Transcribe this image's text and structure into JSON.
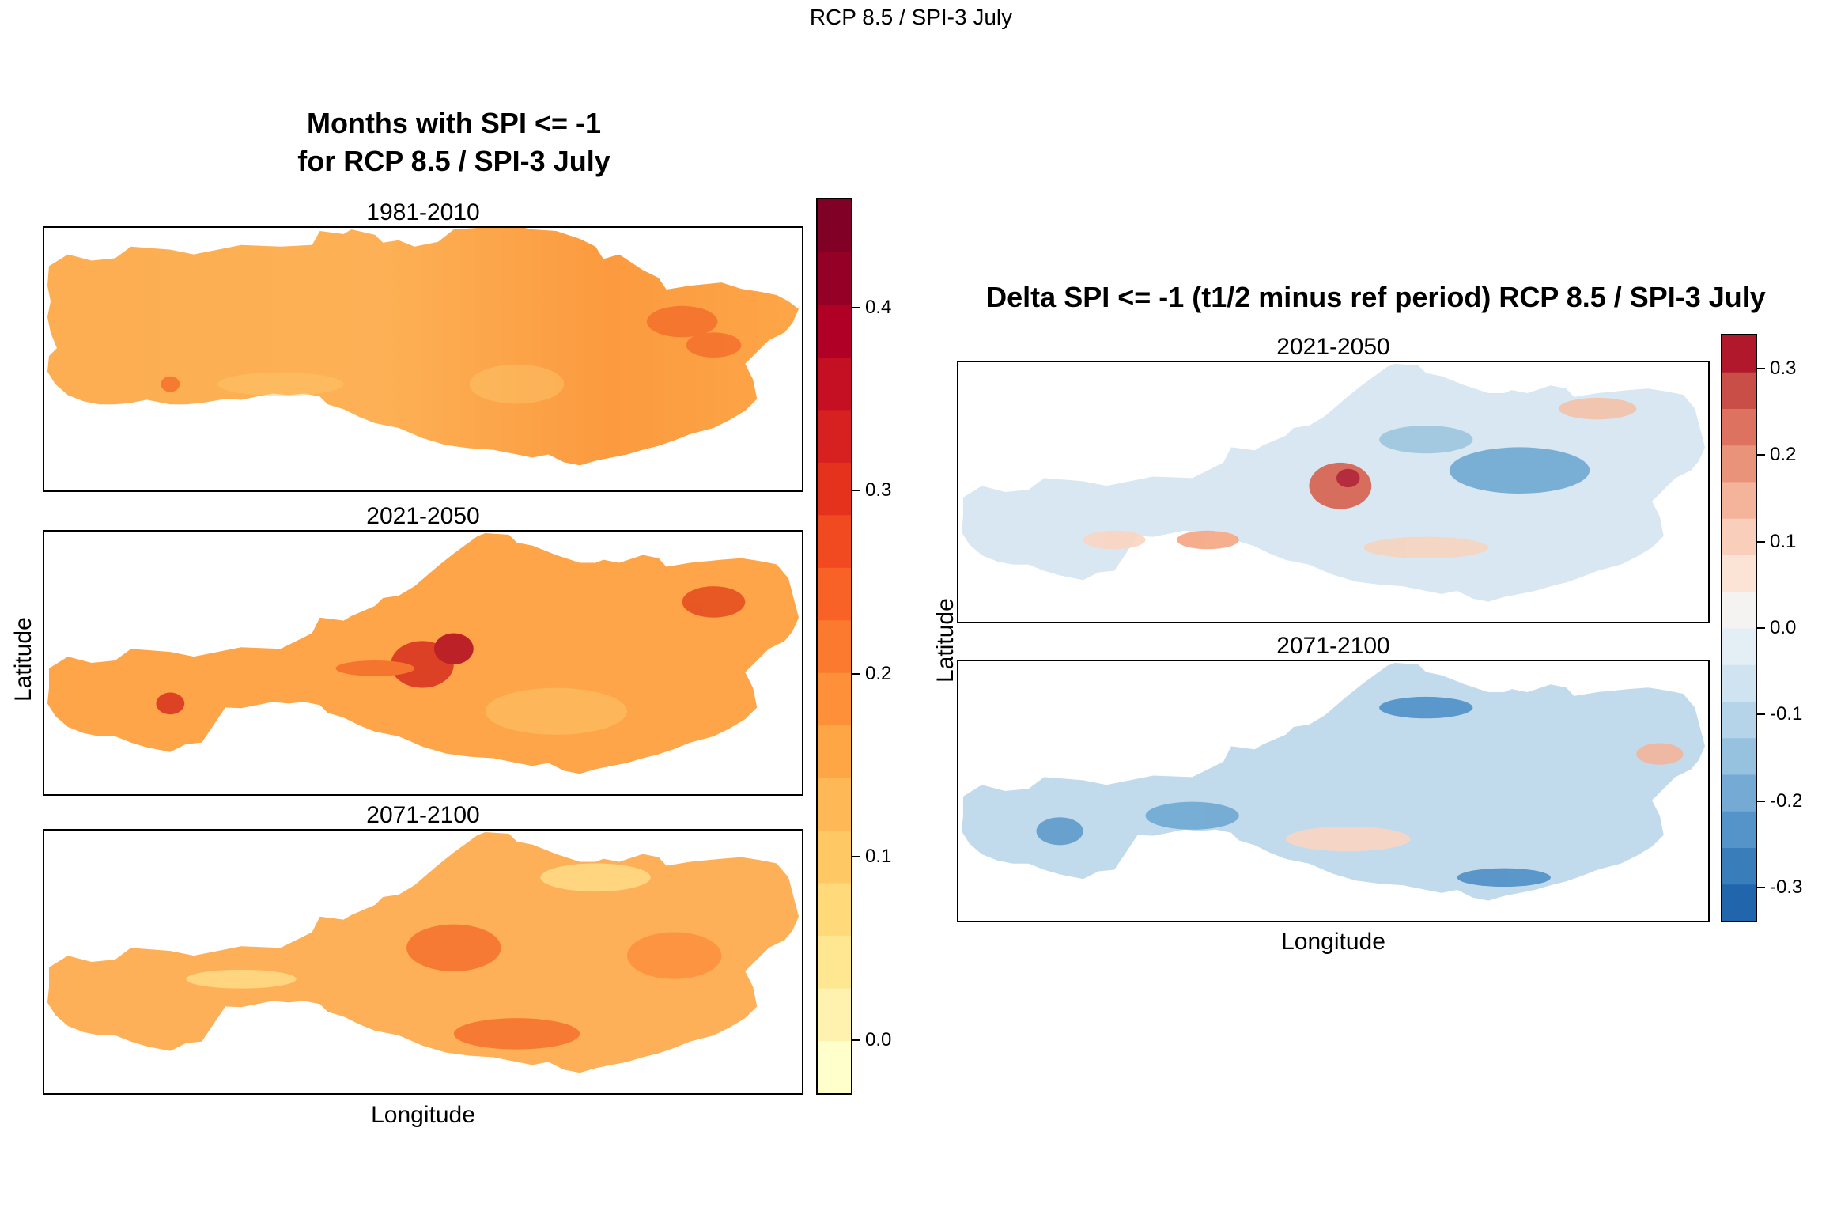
{
  "figure": {
    "suptitle": "RCP 8.5 / SPI-3 July"
  },
  "left": {
    "title_line1": "Months with SPI <= -1",
    "title_line2": "for RCP 8.5 / SPI-3 July",
    "panels": [
      {
        "label": "1981-2010"
      },
      {
        "label": "2021-2050"
      },
      {
        "label": "2071-2100"
      }
    ],
    "xlabel": "Longitude",
    "ylabel": "Latitude",
    "colorbar": {
      "ticks": [
        "0.0",
        "0.1",
        "0.2",
        "0.3",
        "0.4"
      ],
      "tick_values": [
        0.0,
        0.1,
        0.2,
        0.3,
        0.4
      ],
      "range": [
        -0.03,
        0.46
      ],
      "colors": [
        "#ffffcc",
        "#fff2ae",
        "#ffe691",
        "#ffd97a",
        "#fec965",
        "#feb855",
        "#fea546",
        "#fd9038",
        "#fc7a2f",
        "#f86227",
        "#f14a20",
        "#e5321c",
        "#d72020",
        "#c50f23",
        "#b00026",
        "#940026",
        "#800026"
      ]
    }
  },
  "right": {
    "title": "Delta SPI <= -1 (t1/2 minus ref period) RCP 8.5 / SPI-3 July",
    "panels": [
      {
        "label": "2021-2050"
      },
      {
        "label": "2071-2100"
      }
    ],
    "xlabel": "Longitude",
    "ylabel": "Latitude",
    "colorbar": {
      "ticks": [
        "0.3",
        "0.2",
        "0.1",
        "0.0",
        "-0.1",
        "-0.2",
        "-0.3"
      ],
      "tick_values": [
        0.3,
        0.2,
        0.1,
        0.0,
        -0.1,
        -0.2,
        -0.3
      ],
      "range": [
        -0.34,
        0.34
      ],
      "colors": [
        "#2166ac",
        "#3a7dbb",
        "#5594c8",
        "#74aad4",
        "#96c2df",
        "#b5d4e9",
        "#cfe3f0",
        "#e4eef5",
        "#f5f3f1",
        "#fbe3d6",
        "#f9cfbb",
        "#f4b49b",
        "#ea937b",
        "#dc725f",
        "#c94e48",
        "#b2182b"
      ]
    }
  }
}
